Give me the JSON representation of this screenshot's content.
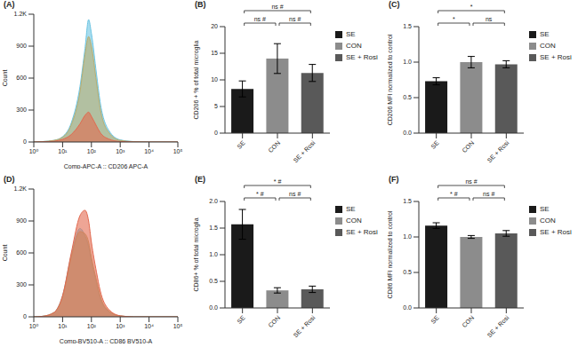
{
  "chart_data": [
    {
      "type": "area",
      "title": "(A)",
      "x_label": "Comp-APC-A :: CD206 APC-A",
      "y_label": "Count",
      "log": "x",
      "x": [
        1,
        2,
        5,
        10,
        20,
        40,
        60,
        80,
        100,
        150,
        200,
        400,
        1000,
        3000,
        10000,
        100000
      ],
      "xlim": [
        1,
        100000
      ],
      "xticks": [
        {
          "value": 1,
          "label": "10⁰"
        },
        {
          "value": 10,
          "label": "10¹"
        },
        {
          "value": 100,
          "label": "10²"
        },
        {
          "value": 1000,
          "label": "10³"
        },
        {
          "value": 10000,
          "label": "10⁴"
        },
        {
          "value": 100000,
          "label": "10⁵"
        }
      ],
      "ylim": [
        0,
        1200
      ],
      "yticks": [
        0,
        300,
        600,
        900,
        {
          "value": 1200,
          "label": "1.2K"
        }
      ],
      "series": [
        {
          "color": "#6cc5e3",
          "values": [
            0,
            4,
            15,
            50,
            180,
            520,
            880,
            1150,
            1020,
            640,
            380,
            110,
            20,
            4,
            0,
            0
          ]
        },
        {
          "color": "#b9ad6e",
          "values": [
            0,
            4,
            15,
            45,
            160,
            470,
            820,
            990,
            900,
            560,
            320,
            90,
            15,
            3,
            0,
            0
          ]
        },
        {
          "color": "#e2694f",
          "values": [
            0,
            2,
            8,
            25,
            70,
            170,
            250,
            280,
            240,
            150,
            90,
            28,
            5,
            1,
            0,
            0
          ]
        }
      ]
    },
    {
      "type": "bar",
      "title": "(B)",
      "y_label": "CD206 + % of total microglia",
      "legend": "right",
      "categories": [
        "SE",
        "CON",
        "SE + Rosi"
      ],
      "values": [
        8.3,
        14,
        11.3
      ],
      "errors": [
        1.5,
        2.8,
        1.6
      ],
      "colors": [
        "#1a1a1a",
        "#8c8c8c",
        "#595959"
      ],
      "ylim": [
        0,
        20
      ],
      "yticks": [
        0,
        5,
        10,
        15,
        20
      ],
      "annotations": [
        {
          "text": "ns #",
          "from": "SE",
          "to": "SE + Rosi"
        },
        {
          "text": "ns #",
          "from": "SE",
          "to": "CON"
        },
        {
          "text": "ns #",
          "from": "CON",
          "to": "SE + Rosi"
        }
      ]
    },
    {
      "type": "bar",
      "title": "(C)",
      "y_label": "CD206 MFI normalized to control",
      "legend": "right",
      "categories": [
        "SE",
        "CON",
        "SE + Rosi"
      ],
      "values": [
        0.73,
        1.0,
        0.97
      ],
      "errors": [
        0.05,
        0.08,
        0.05
      ],
      "colors": [
        "#1a1a1a",
        "#8c8c8c",
        "#595959"
      ],
      "ylim": [
        0,
        1.5
      ],
      "yticks": [
        {
          "value": 0,
          "label": "0.0"
        },
        0.5,
        {
          "value": 1,
          "label": "1.0"
        },
        1.5
      ],
      "annotations": [
        {
          "text": "*",
          "from": "SE",
          "to": "SE + Rosi"
        },
        {
          "text": "*",
          "from": "SE",
          "to": "CON"
        },
        {
          "text": "ns",
          "from": "CON",
          "to": "SE + Rosi"
        }
      ]
    },
    {
      "type": "area",
      "title": "(D)",
      "x_label": "Comp-BV510-A :: CD86 BV510-A",
      "y_label": "Count",
      "log": "x",
      "x": [
        1,
        2,
        5,
        10,
        20,
        40,
        60,
        80,
        100,
        150,
        200,
        400,
        1000,
        3000,
        10000,
        100000
      ],
      "xlim": [
        1,
        100000
      ],
      "xticks": [
        {
          "value": 1,
          "label": "10⁰"
        },
        {
          "value": 10,
          "label": "10¹"
        },
        {
          "value": 100,
          "label": "10²"
        },
        {
          "value": 1000,
          "label": "10³"
        },
        {
          "value": 10000,
          "label": "10⁴"
        },
        {
          "value": 100000,
          "label": "10⁵"
        }
      ],
      "ylim": [
        0,
        1200
      ],
      "yticks": [
        0,
        300,
        600,
        900,
        {
          "value": 1200,
          "label": "1.2K"
        }
      ],
      "series": [
        {
          "color": "#6cc5e3",
          "values": [
            0,
            5,
            40,
            200,
            580,
            830,
            760,
            660,
            520,
            320,
            180,
            50,
            8,
            0,
            0,
            0
          ]
        },
        {
          "color": "#b9ad6e",
          "values": [
            0,
            5,
            40,
            190,
            560,
            800,
            780,
            700,
            560,
            340,
            200,
            55,
            8,
            0,
            0,
            0
          ]
        },
        {
          "color": "#e2694f",
          "values": [
            0,
            5,
            40,
            200,
            600,
            950,
            1000,
            900,
            700,
            420,
            250,
            70,
            10,
            0,
            0,
            0
          ]
        }
      ]
    },
    {
      "type": "bar",
      "title": "(E)",
      "y_label": "CD86+ % of total microglia",
      "legend": "right",
      "categories": [
        "SE",
        "CON",
        "SE + Rosi"
      ],
      "values": [
        1.57,
        0.33,
        0.35
      ],
      "errors": [
        0.28,
        0.05,
        0.06
      ],
      "colors": [
        "#1a1a1a",
        "#8c8c8c",
        "#595959"
      ],
      "ylim": [
        0,
        2
      ],
      "yticks": [
        {
          "value": 0,
          "label": "0.0"
        },
        0.5,
        {
          "value": 1,
          "label": "1.0"
        },
        1.5,
        {
          "value": 2,
          "label": "2.0"
        }
      ],
      "annotations": [
        {
          "text": "* #",
          "from": "SE",
          "to": "SE + Rosi"
        },
        {
          "text": "* #",
          "from": "SE",
          "to": "CON"
        },
        {
          "text": "ns #",
          "from": "CON",
          "to": "SE + Rosi"
        }
      ]
    },
    {
      "type": "bar",
      "title": "(F)",
      "y_label": "CD86 MFI normalized to control",
      "legend": "right",
      "categories": [
        "SE",
        "CON",
        "SE + Rosi"
      ],
      "values": [
        1.16,
        1.0,
        1.05
      ],
      "errors": [
        0.04,
        0.02,
        0.04
      ],
      "colors": [
        "#1a1a1a",
        "#8c8c8c",
        "#595959"
      ],
      "ylim": [
        0,
        1.5
      ],
      "yticks": [
        {
          "value": 0,
          "label": "0.0"
        },
        0.5,
        {
          "value": 1,
          "label": "1.0"
        },
        1.5
      ],
      "annotations": [
        {
          "text": "ns #",
          "from": "SE",
          "to": "SE + Rosi"
        },
        {
          "text": "* #",
          "from": "SE",
          "to": "CON"
        },
        {
          "text": "ns #",
          "from": "CON",
          "to": "SE + Rosi"
        }
      ]
    }
  ]
}
